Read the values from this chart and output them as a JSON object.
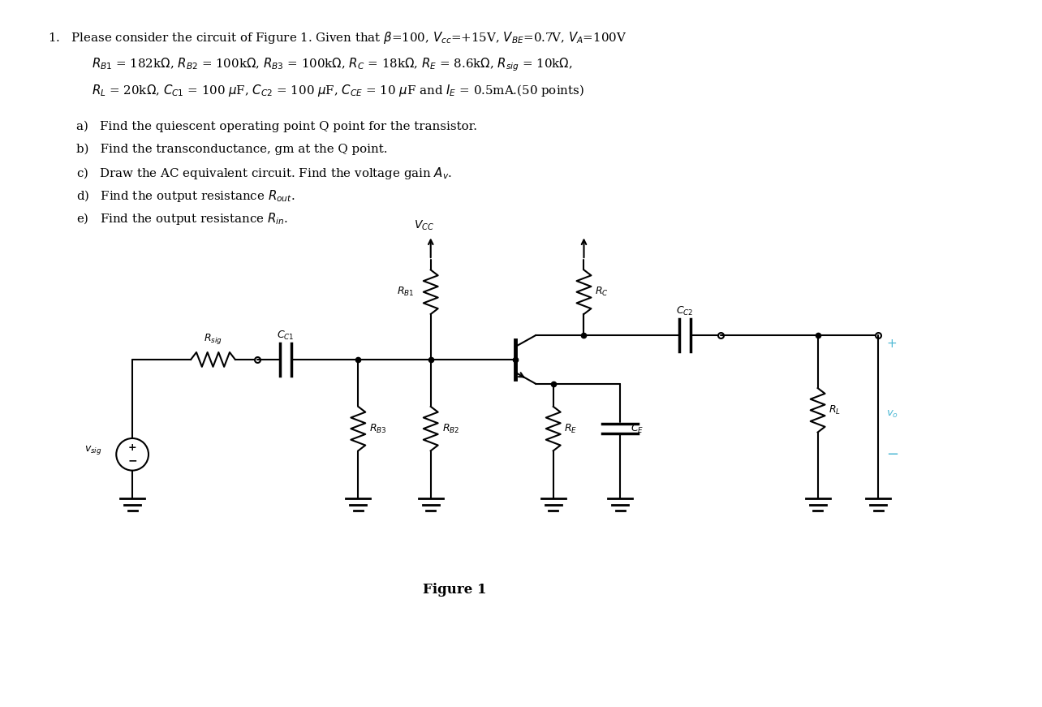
{
  "background": "#ffffff",
  "line_color": "#000000",
  "text_color": "#000000",
  "figure_label": "Figure 1",
  "cyan_color": "#4db8d4"
}
